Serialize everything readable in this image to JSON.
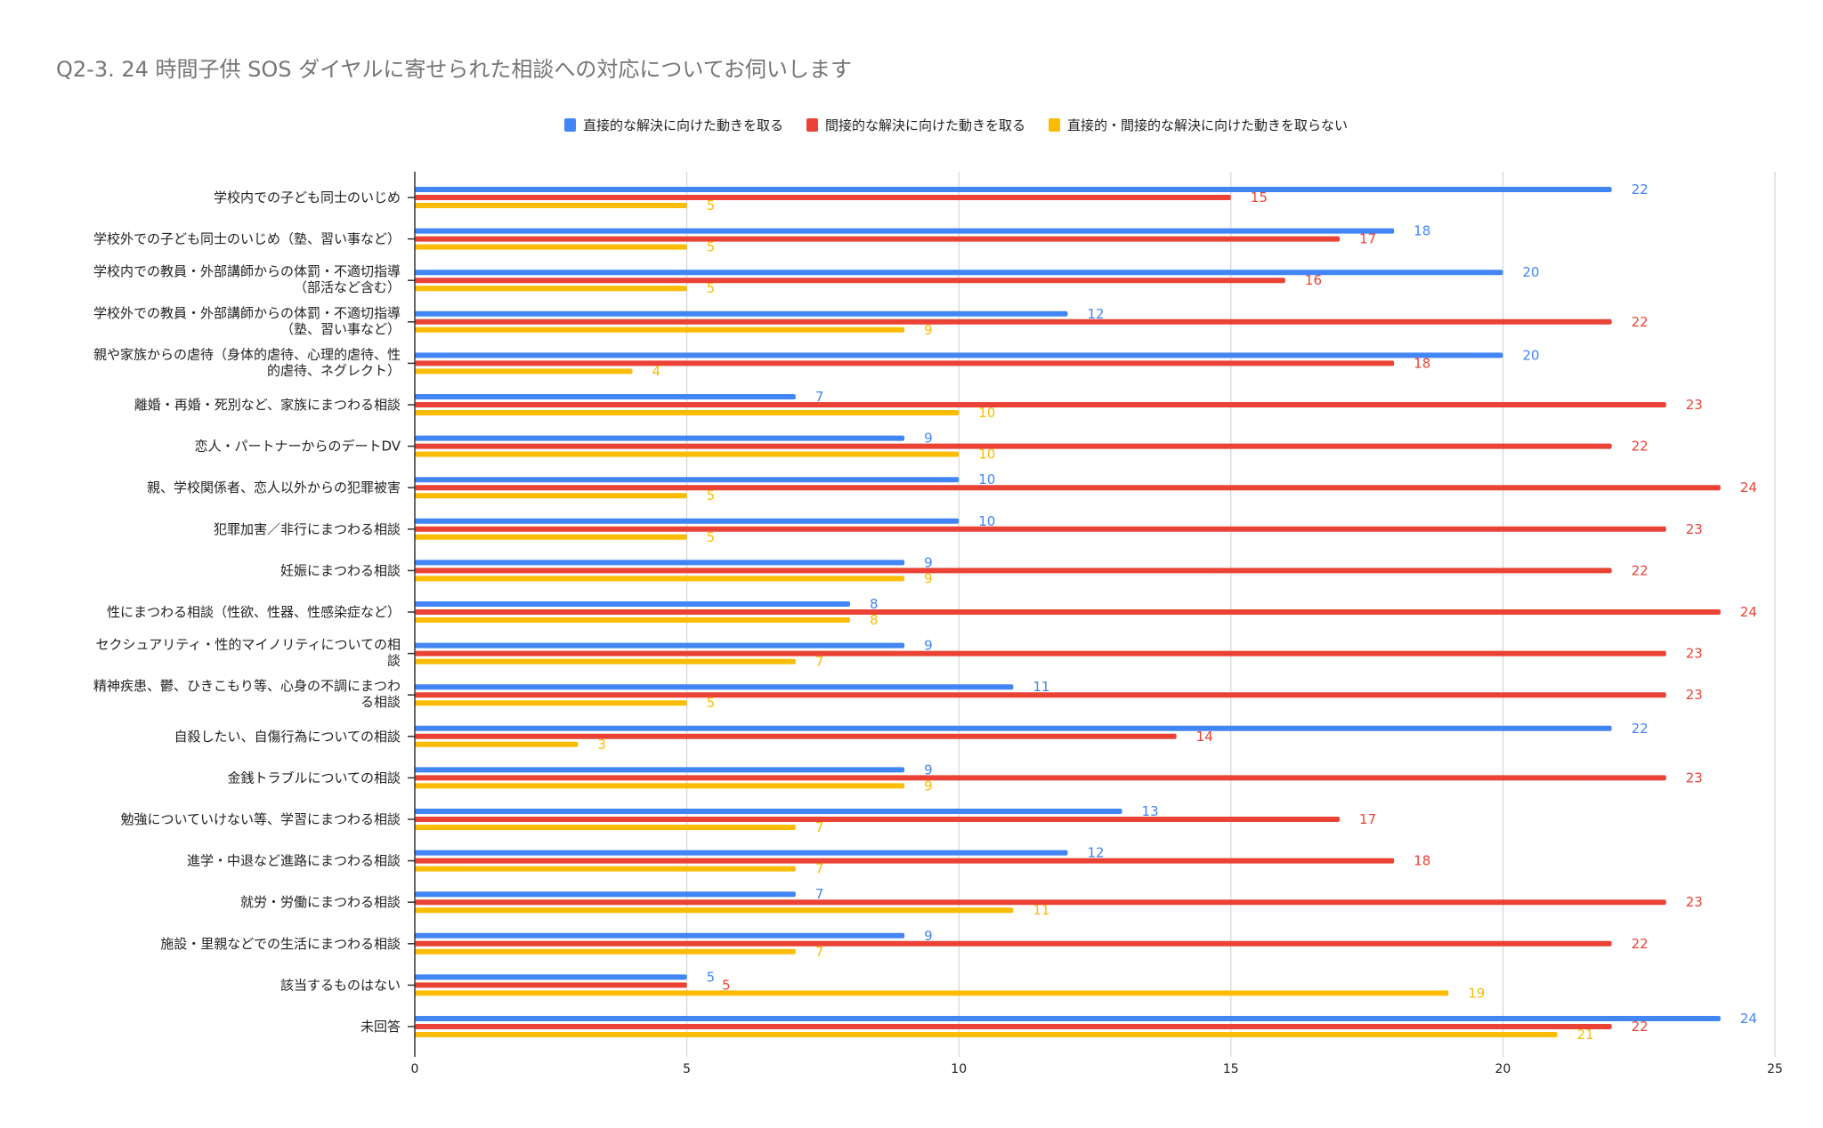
{
  "chart_data": {
    "type": "bar",
    "orientation": "horizontal",
    "title": "Q2-3. 24 時間子供 SOS ダイヤルに寄せられた相談への対応についてお伺いします",
    "xlabel": "",
    "ylabel": "",
    "xlim": [
      0,
      25
    ],
    "xticks": [
      "0",
      "5",
      "10",
      "15",
      "20",
      "25"
    ],
    "grid": true,
    "legend_position": "top",
    "categories": [
      "学校内での子ども同士のいじめ",
      "学校外での子ども同士のいじめ（塾、習い事など）",
      "学校内での教員・外部講師からの体罰・不適切指導\n（部活など含む）",
      "学校外での教員・外部講師からの体罰・不適切指導\n（塾、習い事など）",
      "親や家族からの虐待（身体的虐待、心理的虐待、性\n的虐待、ネグレクト）",
      "離婚・再婚・死別など、家族にまつわる相談",
      "恋人・パートナーからのデートDV",
      "親、学校関係者、恋人以外からの犯罪被害",
      "犯罪加害／非行にまつわる相談",
      "妊娠にまつわる相談",
      "性にまつわる相談（性欲、性器、性感染症など）",
      "セクシュアリティ・性的マイノリティについての相\n談",
      "精神疾患、鬱、ひきこもり等、心身の不調にまつわ\nる相談",
      "自殺したい、自傷行為についての相談",
      "金銭トラブルについての相談",
      "勉強についていけない等、学習にまつわる相談",
      "進学・中退など進路にまつわる相談",
      "就労・労働にまつわる相談",
      "施設・里親などでの生活にまつわる相談",
      "該当するものはない",
      "未回答"
    ],
    "series": [
      {
        "name": "直接的な解決に向けた動きを取る",
        "color": "#4285f4",
        "values": [
          22,
          18,
          20,
          12,
          20,
          7,
          9,
          10,
          10,
          9,
          8,
          9,
          11,
          22,
          9,
          13,
          12,
          7,
          9,
          5,
          24
        ]
      },
      {
        "name": "間接的な解決に向けた動きを取る",
        "color": "#ea4335",
        "values": [
          15,
          17,
          16,
          22,
          18,
          23,
          22,
          24,
          23,
          22,
          24,
          23,
          23,
          14,
          23,
          17,
          18,
          23,
          22,
          5,
          22
        ]
      },
      {
        "name": "直接的・間接的な解決に向けた動きを取らない",
        "color": "#fbbc04",
        "values": [
          5,
          5,
          5,
          9,
          4,
          10,
          10,
          5,
          5,
          9,
          8,
          7,
          5,
          3,
          9,
          7,
          7,
          11,
          7,
          19,
          21
        ]
      }
    ]
  }
}
